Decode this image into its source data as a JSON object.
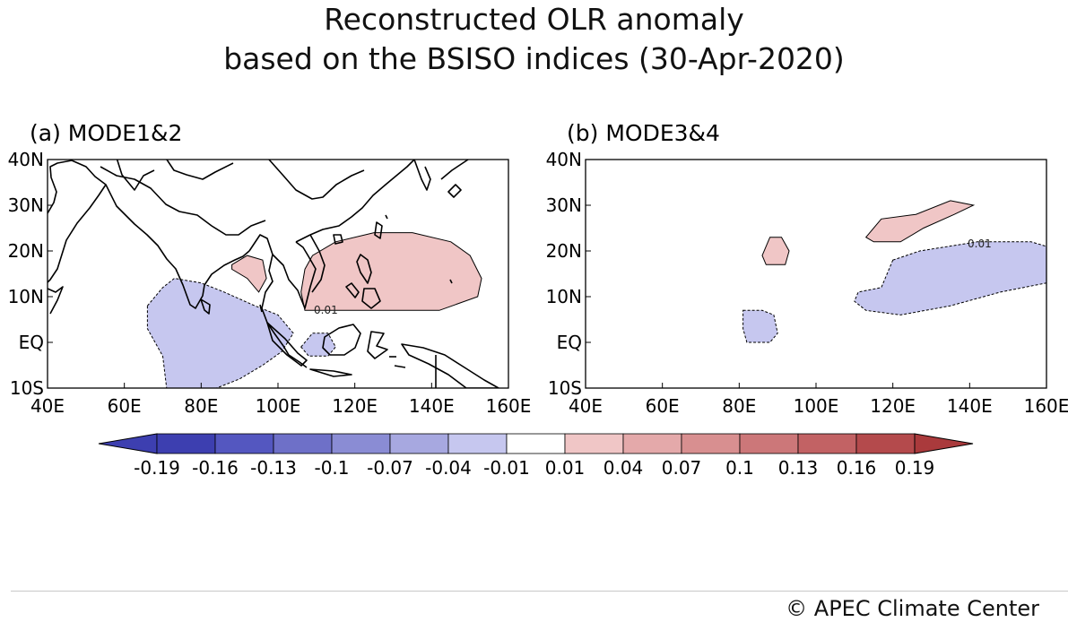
{
  "title": {
    "line1": "Reconstructed OLR anomaly",
    "line2": "based on the BSISO indices (30-Apr-2020)"
  },
  "panels": [
    {
      "label": "(a) MODE1&2",
      "contour_label": "0.01",
      "features": [
        {
          "sign": "positive",
          "region": "Bay of Bengal / Myanmar",
          "ring": [
            [
              88,
              17
            ],
            [
              92,
              19
            ],
            [
              96,
              18
            ],
            [
              97,
              14
            ],
            [
              95,
              11
            ],
            [
              92,
              14
            ],
            [
              88,
              16
            ]
          ]
        },
        {
          "sign": "positive",
          "region": "South China Sea to West Pacific",
          "ring": [
            [
              107,
              16
            ],
            [
              109,
              19
            ],
            [
              115,
              22
            ],
            [
              125,
              24
            ],
            [
              135,
              24
            ],
            [
              145,
              22
            ],
            [
              150,
              19
            ],
            [
              153,
              14
            ],
            [
              152,
              10
            ],
            [
              142,
              7
            ],
            [
              126,
              7
            ],
            [
              113,
              7
            ],
            [
              107,
              7
            ],
            [
              106,
              11
            ]
          ]
        },
        {
          "sign": "negative",
          "region": "Equatorial Indian Ocean",
          "ring": [
            [
              66,
              8
            ],
            [
              70,
              12
            ],
            [
              73,
              14
            ],
            [
              80,
              13
            ],
            [
              86,
              11
            ],
            [
              94,
              8
            ],
            [
              100,
              6
            ],
            [
              104,
              2
            ],
            [
              101,
              -2
            ],
            [
              96,
              -5
            ],
            [
              90,
              -8
            ],
            [
              84,
              -10
            ],
            [
              71,
              -10
            ],
            [
              70,
              -3
            ],
            [
              66,
              3
            ]
          ]
        },
        {
          "sign": "negative",
          "region": "Borneo / Java Sea",
          "ring": [
            [
              106,
              -1
            ],
            [
              109,
              2
            ],
            [
              113,
              2
            ],
            [
              115,
              -1
            ],
            [
              113,
              -3
            ],
            [
              108,
              -3
            ]
          ]
        }
      ]
    },
    {
      "label": "(b) MODE3&4",
      "contour_label": "0.01",
      "features": [
        {
          "sign": "positive",
          "region": "Bay of Bengal",
          "ring": [
            [
              86,
              19
            ],
            [
              88,
              23
            ],
            [
              91,
              23
            ],
            [
              93,
              20
            ],
            [
              92,
              17
            ],
            [
              87,
              17
            ]
          ]
        },
        {
          "sign": "positive",
          "region": "South China / East China Sea",
          "ring": [
            [
              113,
              23
            ],
            [
              117,
              27
            ],
            [
              126,
              28
            ],
            [
              135,
              31
            ],
            [
              141,
              30
            ],
            [
              136,
              28
            ],
            [
              128,
              25
            ],
            [
              122,
              22
            ],
            [
              115,
              22
            ]
          ]
        },
        {
          "sign": "negative",
          "region": "Philippine Sea",
          "ring": [
            [
              120,
              18
            ],
            [
              127,
              20
            ],
            [
              142,
              22
            ],
            [
              156,
              22
            ],
            [
              160,
              21
            ],
            [
              160,
              13
            ],
            [
              148,
              11
            ],
            [
              135,
              8
            ],
            [
              122,
              6
            ],
            [
              113,
              7
            ],
            [
              110,
              9
            ],
            [
              111,
              11
            ],
            [
              117,
              12
            ]
          ]
        },
        {
          "sign": "negative",
          "region": "Equatorial Indian Ocean",
          "ring": [
            [
              81,
              7
            ],
            [
              86,
              7
            ],
            [
              89,
              6
            ],
            [
              90,
              2
            ],
            [
              88,
              0
            ],
            [
              82,
              0
            ],
            [
              81,
              3
            ]
          ]
        }
      ]
    }
  ],
  "axes": {
    "lon_range": [
      40,
      160
    ],
    "lat_range": [
      -10,
      40
    ],
    "x_ticks": [
      "40E",
      "60E",
      "80E",
      "100E",
      "120E",
      "140E",
      "160E"
    ],
    "x_tick_values": [
      40,
      60,
      80,
      100,
      120,
      140,
      160
    ],
    "y_ticks": [
      "40N",
      "30N",
      "20N",
      "10N",
      "EQ",
      "10S"
    ],
    "y_tick_values": [
      40,
      30,
      20,
      10,
      0,
      -10
    ]
  },
  "colorbar": {
    "labels": [
      "-0.19",
      "-0.16",
      "-0.13",
      "-0.1",
      "-0.07",
      "-0.04",
      "-0.01",
      "0.01",
      "0.04",
      "0.07",
      "0.1",
      "0.13",
      "0.16",
      "0.19"
    ],
    "colors": [
      "#3d3fb0",
      "#5457c0",
      "#6e70c8",
      "#8a8cd4",
      "#a7a8e0",
      "#c6c7ef",
      "#ffffff",
      "#f0c6c6",
      "#e4a9aa",
      "#d88f90",
      "#cc7779",
      "#c26264",
      "#b44a4c",
      "#aa3a3c"
    ],
    "neg_arrow_color": "#3d3fb0",
    "pos_arrow_color": "#aa3a3c"
  },
  "footer": "©  APEC Climate Center"
}
